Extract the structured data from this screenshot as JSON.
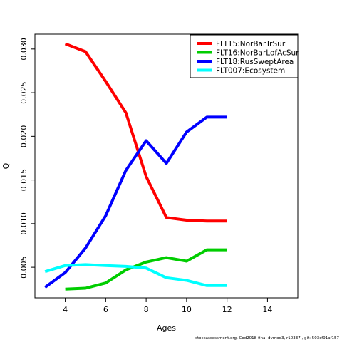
{
  "chart_data": {
    "type": "line",
    "xlabel": "Ages",
    "ylabel": "Q",
    "xlim": [
      2.5,
      15.5
    ],
    "ylim": [
      0.0015,
      0.0317
    ],
    "xticks": [
      4,
      6,
      8,
      10,
      12,
      14
    ],
    "yticks": [
      0.005,
      0.01,
      0.015,
      0.02,
      0.025,
      0.03
    ],
    "ytick_labels": [
      "0.005",
      "0.010",
      "0.015",
      "0.020",
      "0.025",
      "0.030"
    ],
    "legend_position": "top-right",
    "grid": false,
    "series": [
      {
        "name": "FLT15:NorBarTrSur",
        "color": "#ff0000",
        "x": [
          4,
          5,
          6,
          7,
          8,
          9,
          10,
          11,
          12
        ],
        "y": [
          0.0306,
          0.0297,
          0.0263,
          0.0227,
          0.0154,
          0.0107,
          0.0104,
          0.0103,
          0.0103
        ]
      },
      {
        "name": "FLT16:NorBarLofAcSur",
        "color": "#00cd00",
        "x": [
          4,
          5,
          6,
          7,
          8,
          9,
          10,
          11,
          12
        ],
        "y": [
          0.0025,
          0.0026,
          0.0032,
          0.0047,
          0.0056,
          0.0061,
          0.0057,
          0.007,
          0.007
        ]
      },
      {
        "name": "FLT18:RusSweptArea",
        "color": "#0000ff",
        "x": [
          3,
          4,
          5,
          6,
          7,
          8,
          9,
          10,
          11,
          12
        ],
        "y": [
          0.0027,
          0.0044,
          0.0072,
          0.0109,
          0.0161,
          0.0195,
          0.0169,
          0.0205,
          0.0222,
          0.0222
        ]
      },
      {
        "name": "FLT007:Ecosystem",
        "color": "#00ffff",
        "x": [
          3,
          4,
          5,
          6,
          7,
          8,
          9,
          10,
          11,
          12
        ],
        "y": [
          0.0045,
          0.0052,
          0.0053,
          0.0052,
          0.0051,
          0.0049,
          0.0038,
          0.0035,
          0.0029,
          0.0029
        ]
      }
    ]
  },
  "footer": "stockassessment.org,  Cod2018-final-dvmod3,  r10337 ,  git:  503cf91af157"
}
